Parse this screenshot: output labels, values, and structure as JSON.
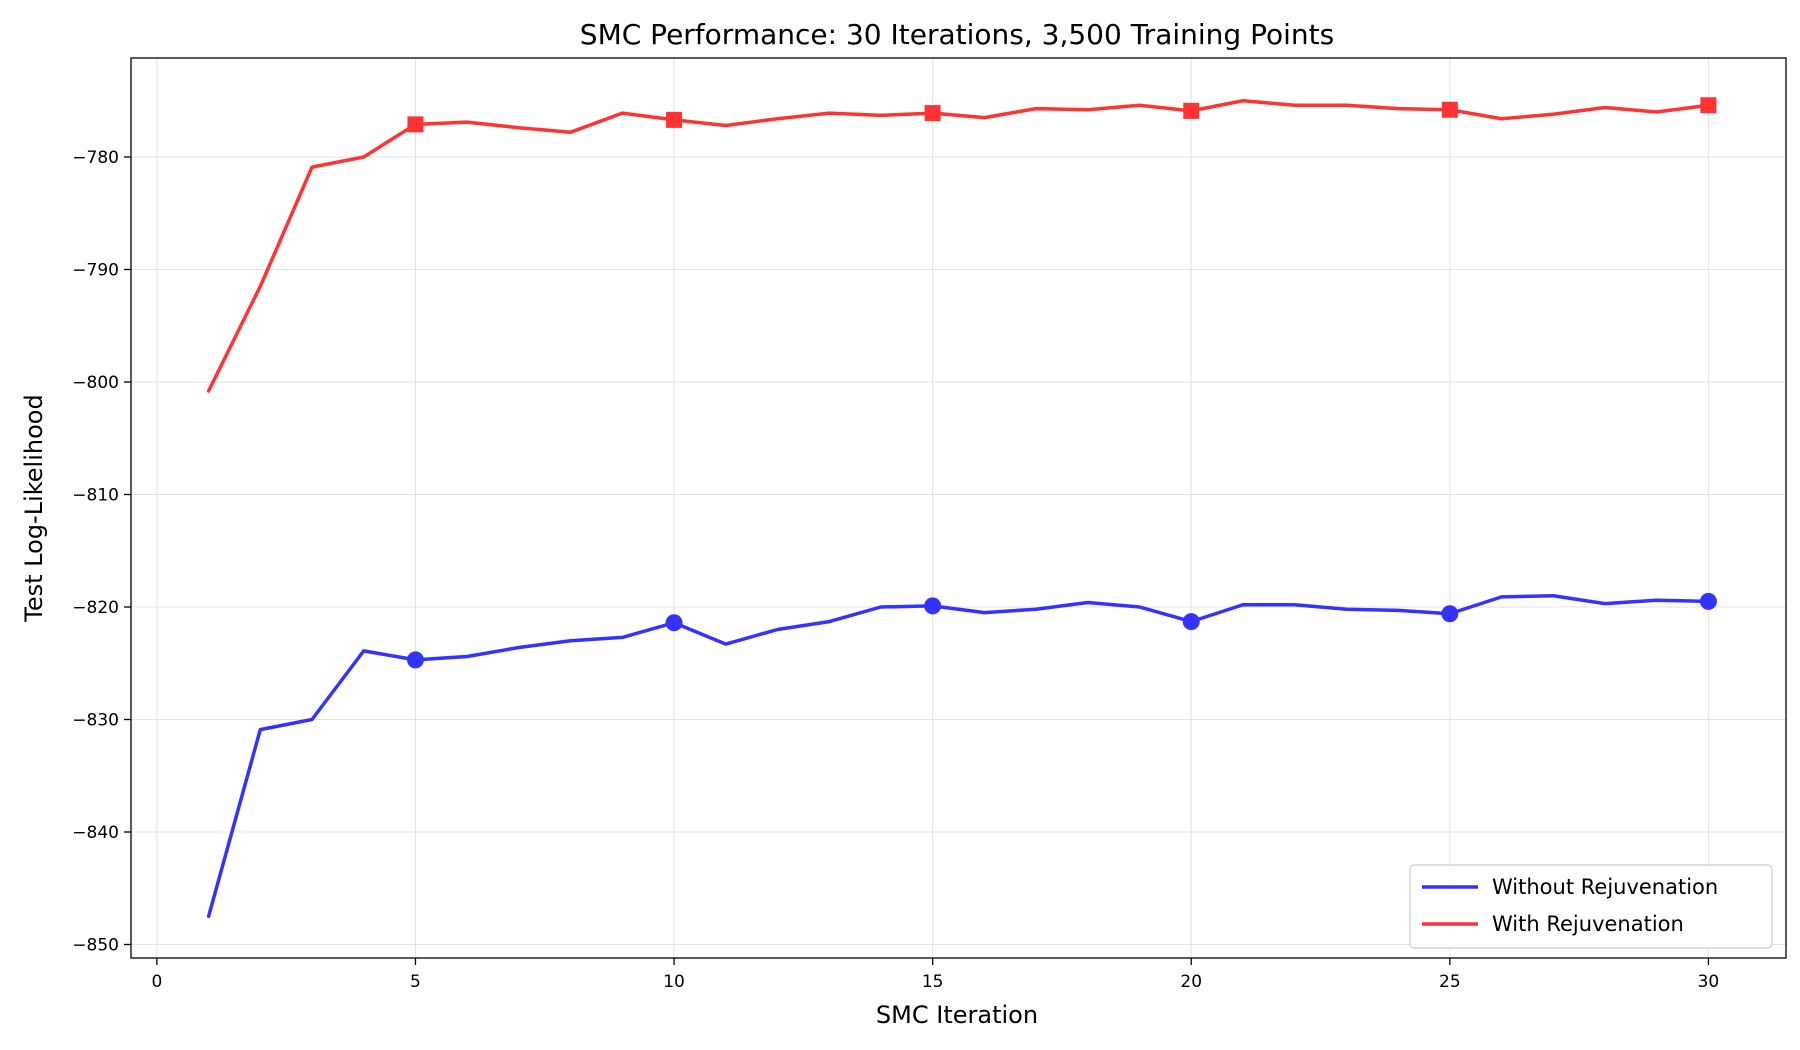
{
  "chart_data": {
    "type": "line",
    "title": "SMC Performance: 30 Iterations, 3,500 Training Points",
    "xlabel": "SMC Iteration",
    "ylabel": "Test Log-Likelihood",
    "xlim": [
      -0.5,
      31.5
    ],
    "ylim": [
      -851.2,
      -771.2
    ],
    "xticks": [
      0,
      5,
      10,
      15,
      20,
      25,
      30
    ],
    "yticks": [
      -850,
      -840,
      -830,
      -820,
      -810,
      -800,
      -790,
      -780
    ],
    "ytick_labels": [
      "−850",
      "−840",
      "−830",
      "−820",
      "−810",
      "−800",
      "−790",
      "−780"
    ],
    "grid": true,
    "legend_position": "lower-right",
    "marker_every": 5,
    "x": [
      1,
      2,
      3,
      4,
      5,
      6,
      7,
      8,
      9,
      10,
      11,
      12,
      13,
      14,
      15,
      16,
      17,
      18,
      19,
      20,
      21,
      22,
      23,
      24,
      25,
      26,
      27,
      28,
      29,
      30
    ],
    "series": [
      {
        "name": "Without Rejuvenation",
        "color": "#3333ff",
        "marker": "circle",
        "values": [
          -847.5,
          -830.9,
          -830.0,
          -823.9,
          -824.7,
          -824.4,
          -823.6,
          -823.0,
          -822.7,
          -821.4,
          -823.3,
          -822.0,
          -821.3,
          -820.0,
          -819.9,
          -820.5,
          -820.2,
          -819.6,
          -820.0,
          -821.3,
          -819.8,
          -819.8,
          -820.2,
          -820.3,
          -820.6,
          -819.1,
          -819.0,
          -819.7,
          -819.4,
          -819.5
        ]
      },
      {
        "name": "With Rejuvenation",
        "color": "#ff3333",
        "marker": "square",
        "values": [
          -800.8,
          -791.5,
          -780.9,
          -780.0,
          -777.1,
          -776.9,
          -777.4,
          -777.8,
          -776.1,
          -776.7,
          -777.2,
          -776.6,
          -776.1,
          -776.3,
          -776.1,
          -776.5,
          -775.7,
          -775.8,
          -775.4,
          -775.9,
          -775.0,
          -775.4,
          -775.4,
          -775.7,
          -775.8,
          -776.6,
          -776.2,
          -775.6,
          -776.0,
          -775.4
        ]
      }
    ]
  }
}
